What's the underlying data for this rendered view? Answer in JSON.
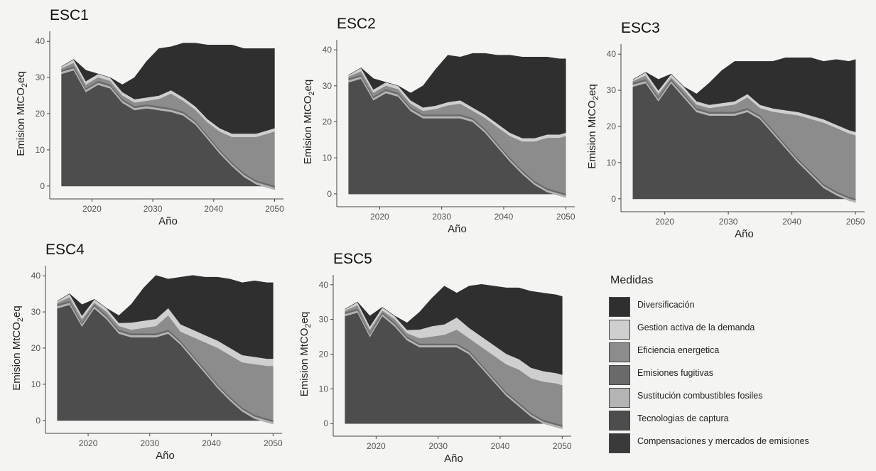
{
  "chart_data": [
    {
      "type": "area",
      "title": "ESC1",
      "xlabel": "Año",
      "ylabel": "Emision MtCO2eq",
      "xlim": [
        2014,
        2051
      ],
      "ylim": [
        -2,
        42
      ],
      "x_ticks": [
        2020,
        2030,
        2040,
        2050
      ],
      "y_ticks": [
        0,
        10,
        20,
        30,
        40
      ],
      "grid": false,
      "years": [
        2015,
        2017,
        2019,
        2021,
        2023,
        2025,
        2027,
        2029,
        2031,
        2033,
        2035,
        2037,
        2039,
        2041,
        2043,
        2045,
        2047,
        2049,
        2050
      ],
      "series": [
        {
          "name": "Compensaciones y mercados de emisiones",
          "values": [
            0,
            0,
            0,
            0,
            0,
            0,
            0,
            0,
            0,
            0,
            0,
            0,
            0,
            0,
            0,
            0,
            0,
            0,
            0
          ]
        },
        {
          "name": "Tecnologias de captura",
          "values": [
            31,
            32,
            26,
            28,
            27,
            23,
            21,
            21.5,
            21,
            20.5,
            19.5,
            17,
            13,
            9,
            5.5,
            2.5,
            0.5,
            -0.5,
            -1
          ]
        },
        {
          "name": "Sustitución combustibles fosiles",
          "values": [
            0.6,
            0.6,
            0.6,
            0.6,
            0.6,
            0.6,
            0.6,
            0.6,
            0.6,
            0.6,
            0.6,
            0.6,
            0.6,
            0.6,
            0.6,
            0.6,
            0.6,
            0.6,
            0.6
          ]
        },
        {
          "name": "Emisiones fugitivas",
          "values": [
            0.5,
            0.5,
            0.5,
            0.5,
            0.5,
            0.5,
            0.5,
            0.5,
            0.5,
            0.5,
            0.5,
            0.5,
            0.5,
            0.5,
            0.5,
            0.5,
            0.5,
            0.5,
            0.5
          ]
        },
        {
          "name": "Eficiencia energetica",
          "values": [
            0.5,
            1,
            1,
            1,
            1,
            1,
            1,
            1,
            2,
            4,
            3,
            3,
            3.5,
            5,
            7,
            10,
            12,
            14,
            15
          ]
        },
        {
          "name": "Gestion activa de la demanda",
          "values": [
            0.4,
            0.9,
            0.9,
            0.9,
            0.9,
            0.9,
            0.9,
            0.9,
            0.9,
            0.9,
            0.9,
            0.9,
            0.9,
            0.9,
            0.9,
            0.9,
            0.9,
            0.9,
            0.9
          ]
        },
        {
          "name": "Diversificación",
          "values": [
            0,
            0,
            3,
            0,
            0,
            2,
            6,
            10,
            13,
            12,
            15,
            17.5,
            20.5,
            23,
            24.5,
            23.5,
            23.5,
            22.5,
            22
          ]
        }
      ]
    },
    {
      "type": "area",
      "title": "ESC2",
      "xlabel": "Año",
      "ylabel": "Emision MtCO2eq",
      "xlim": [
        2014,
        2051
      ],
      "ylim": [
        -2,
        42
      ],
      "x_ticks": [
        2020,
        2030,
        2040,
        2050
      ],
      "y_ticks": [
        0,
        10,
        20,
        30,
        40
      ],
      "grid": false,
      "years": [
        2015,
        2017,
        2019,
        2021,
        2023,
        2025,
        2027,
        2029,
        2031,
        2033,
        2035,
        2037,
        2039,
        2041,
        2043,
        2045,
        2047,
        2049,
        2050
      ],
      "series": [
        {
          "name": "Compensaciones y mercados de emisiones",
          "values": [
            0,
            0,
            0,
            0,
            0,
            0,
            0,
            0,
            0,
            0,
            0,
            0,
            0,
            0,
            0,
            0,
            0,
            0,
            0
          ]
        },
        {
          "name": "Tecnologias de captura",
          "values": [
            31,
            32,
            26,
            28,
            27,
            23,
            21,
            21,
            21,
            21,
            20,
            17,
            13,
            9,
            5.5,
            2.5,
            0.5,
            -0.5,
            -1
          ]
        },
        {
          "name": "Sustitución combustibles fosiles",
          "values": [
            0.6,
            0.6,
            0.6,
            0.6,
            0.6,
            0.6,
            0.6,
            0.6,
            0.6,
            0.6,
            0.6,
            0.6,
            0.6,
            0.6,
            0.6,
            0.6,
            0.6,
            0.6,
            0.6
          ]
        },
        {
          "name": "Emisiones fugitivas",
          "values": [
            0.5,
            0.5,
            0.5,
            0.5,
            0.5,
            0.5,
            0.5,
            0.5,
            0.5,
            0.5,
            0.5,
            0.5,
            0.5,
            0.5,
            0.5,
            0.5,
            0.5,
            0.5,
            0.5
          ]
        },
        {
          "name": "Eficiencia energetica",
          "values": [
            0.5,
            1,
            1,
            1,
            1,
            1,
            1,
            1.5,
            2.5,
            3,
            2,
            3,
            4.5,
            6,
            8,
            11,
            14,
            15,
            16
          ]
        },
        {
          "name": "Gestion activa de la demanda",
          "values": [
            0.4,
            0.9,
            0.9,
            0.9,
            0.9,
            0.9,
            0.9,
            0.9,
            0.9,
            0.9,
            0.9,
            0.9,
            0.9,
            0.9,
            0.9,
            0.9,
            0.9,
            0.9,
            0.9
          ]
        },
        {
          "name": "Diversificación",
          "values": [
            0,
            0,
            3,
            0,
            0,
            2,
            6,
            10,
            13,
            12,
            15,
            17,
            19,
            21.5,
            22.5,
            22.5,
            21.5,
            21,
            20.5
          ]
        }
      ]
    },
    {
      "type": "area",
      "title": "ESC3",
      "xlabel": "Año",
      "ylabel": "Emision MtCO2eq",
      "xlim": [
        2014,
        2051
      ],
      "ylim": [
        -2,
        42
      ],
      "x_ticks": [
        2020,
        2030,
        2040,
        2050
      ],
      "y_ticks": [
        0,
        10,
        20,
        30,
        40
      ],
      "grid": false,
      "years": [
        2015,
        2017,
        2019,
        2021,
        2023,
        2025,
        2027,
        2029,
        2031,
        2033,
        2035,
        2037,
        2039,
        2041,
        2043,
        2045,
        2047,
        2049,
        2050
      ],
      "series": [
        {
          "name": "Compensaciones y mercados de emisiones",
          "values": [
            0,
            0,
            0,
            0,
            0,
            0,
            0,
            0,
            0,
            0,
            0,
            0,
            0,
            0,
            0,
            0,
            0,
            0,
            0
          ]
        },
        {
          "name": "Tecnologias de captura",
          "values": [
            31,
            32,
            27,
            32,
            28,
            24,
            23,
            23,
            23,
            24,
            22,
            18,
            14,
            10,
            6.5,
            3,
            1,
            -0.5,
            -1
          ]
        },
        {
          "name": "Sustitución combustibles fosiles",
          "values": [
            0.6,
            0.6,
            0.6,
            0.6,
            0.6,
            0.6,
            0.6,
            0.6,
            0.6,
            0.6,
            0.6,
            0.6,
            0.6,
            0.6,
            0.6,
            0.6,
            0.6,
            0.6,
            0.6
          ]
        },
        {
          "name": "Emisiones fugitivas",
          "values": [
            0.5,
            0.5,
            0.5,
            0.5,
            0.5,
            0.5,
            0.5,
            0.5,
            0.5,
            0.5,
            0.5,
            0.5,
            0.5,
            0.5,
            0.5,
            0.5,
            0.5,
            0.5,
            0.5
          ]
        },
        {
          "name": "Eficiencia energetica",
          "values": [
            0.5,
            1,
            1,
            0.5,
            1,
            1,
            1,
            1.5,
            2,
            3,
            2,
            5,
            8.5,
            12,
            14.5,
            17,
            17.5,
            17.5,
            17.5
          ]
        },
        {
          "name": "Gestion activa de la demanda",
          "values": [
            0.4,
            0.9,
            0.9,
            0.9,
            0.9,
            0.9,
            0.9,
            0.9,
            0.9,
            0.9,
            0.9,
            0.9,
            0.9,
            0.9,
            0.9,
            0.9,
            0.9,
            0.9,
            0.9
          ]
        },
        {
          "name": "Diversificación",
          "values": [
            0,
            0,
            3,
            0,
            0,
            2,
            6,
            9,
            11,
            9,
            12,
            13,
            14.5,
            15,
            16,
            16,
            18,
            19,
            20
          ]
        }
      ]
    },
    {
      "type": "area",
      "title": "ESC4",
      "xlabel": "Año",
      "ylabel": "Emision MtCO2eq",
      "xlim": [
        2014,
        2051
      ],
      "ylim": [
        -2,
        42
      ],
      "x_ticks": [
        2020,
        2030,
        2040,
        2050
      ],
      "y_ticks": [
        0,
        10,
        20,
        30,
        40
      ],
      "grid": false,
      "years": [
        2015,
        2017,
        2019,
        2021,
        2023,
        2025,
        2027,
        2029,
        2031,
        2033,
        2035,
        2037,
        2039,
        2041,
        2043,
        2045,
        2047,
        2049,
        2050
      ],
      "series": [
        {
          "name": "Compensaciones y mercados de emisiones",
          "values": [
            0,
            0,
            0,
            0,
            0,
            0,
            0,
            0,
            0,
            0,
            0,
            0,
            0,
            0,
            0,
            0,
            0,
            0,
            0
          ]
        },
        {
          "name": "Tecnologias de captura",
          "values": [
            31,
            32,
            26,
            31,
            28,
            24,
            23,
            23,
            23,
            24,
            21,
            17,
            13,
            9,
            5.5,
            2.5,
            0.5,
            -0.5,
            -1
          ]
        },
        {
          "name": "Sustitución combustibles fosiles",
          "values": [
            0.6,
            0.6,
            0.6,
            0.6,
            0.6,
            0.6,
            0.6,
            0.6,
            0.6,
            0.6,
            0.6,
            0.6,
            0.6,
            0.6,
            0.6,
            0.6,
            0.6,
            0.6,
            0.6
          ]
        },
        {
          "name": "Emisiones fugitivas",
          "values": [
            0.5,
            0.5,
            0.5,
            0.5,
            0.5,
            0.5,
            0.5,
            0.5,
            0.5,
            0.5,
            0.5,
            0.5,
            0.5,
            0.5,
            0.5,
            0.5,
            0.5,
            0.5,
            0.5
          ]
        },
        {
          "name": "Eficiencia energetica",
          "values": [
            0.5,
            1,
            1,
            0.5,
            1,
            1,
            1,
            1.5,
            2,
            4,
            2.5,
            5,
            7.5,
            10,
            11.5,
            12.5,
            14,
            14.5,
            15
          ]
        },
        {
          "name": "Gestion activa de la demanda",
          "values": [
            0.4,
            0.9,
            0.9,
            0.9,
            0.9,
            0.9,
            2,
            2,
            2,
            2,
            2,
            2,
            2,
            2,
            2,
            2,
            2,
            2,
            2
          ]
        },
        {
          "name": "Diversificación",
          "values": [
            0,
            0,
            3,
            0,
            0,
            2,
            5,
            9,
            12,
            8,
            13,
            15,
            16,
            17.5,
            19,
            20,
            21,
            21,
            21
          ]
        }
      ]
    },
    {
      "type": "area",
      "title": "ESC5",
      "xlabel": "Año",
      "ylabel": "Emision MtCO2eq",
      "xlim": [
        2014,
        2051
      ],
      "ylim": [
        -2,
        42
      ],
      "x_ticks": [
        2020,
        2030,
        2040,
        2050
      ],
      "y_ticks": [
        0,
        10,
        20,
        30,
        40
      ],
      "grid": false,
      "years": [
        2015,
        2017,
        2019,
        2021,
        2023,
        2025,
        2027,
        2029,
        2031,
        2033,
        2035,
        2037,
        2039,
        2041,
        2043,
        2045,
        2047,
        2049,
        2050
      ],
      "series": [
        {
          "name": "Compensaciones y mercados de emisiones",
          "values": [
            0,
            0,
            0,
            0,
            0,
            0,
            0,
            0,
            0,
            0,
            0,
            0,
            0,
            0,
            0,
            0,
            0,
            0,
            0
          ]
        },
        {
          "name": "Tecnologias de captura",
          "values": [
            31,
            32,
            25,
            31,
            28,
            24,
            22,
            22,
            22,
            22,
            20,
            16,
            12,
            8,
            5,
            2,
            0,
            -1,
            -1.5
          ]
        },
        {
          "name": "Sustitución combustibles fosiles",
          "values": [
            0.6,
            0.6,
            0.6,
            0.6,
            0.6,
            0.6,
            0.6,
            0.6,
            0.6,
            0.6,
            0.6,
            0.6,
            0.6,
            0.6,
            0.6,
            0.6,
            0.6,
            0.6,
            0.6
          ]
        },
        {
          "name": "Emisiones fugitivas",
          "values": [
            0.5,
            0.5,
            0.5,
            0.5,
            0.5,
            0.5,
            0.5,
            0.5,
            0.5,
            0.5,
            0.5,
            0.5,
            0.5,
            0.5,
            0.5,
            0.5,
            0.5,
            0.5,
            0.5
          ]
        },
        {
          "name": "Eficiencia energetica",
          "values": [
            0.5,
            1,
            1,
            0.5,
            1,
            1,
            1.5,
            2,
            2.5,
            4,
            3.5,
            5,
            6.5,
            8,
            9.5,
            10,
            11,
            11.5,
            11.5
          ]
        },
        {
          "name": "Gestion activa de la demanda",
          "values": [
            0.4,
            0.9,
            0.9,
            0.9,
            0.9,
            0.9,
            2.5,
            3,
            3,
            3.5,
            3,
            3,
            3,
            3,
            3,
            3,
            3,
            3,
            3
          ]
        },
        {
          "name": "Diversificación",
          "values": [
            0,
            0,
            3,
            0,
            0,
            2,
            5,
            8,
            11,
            7,
            12,
            15,
            17,
            19,
            20.5,
            22,
            22.5,
            22.5,
            22.5
          ]
        }
      ]
    }
  ],
  "legend": {
    "title": "Medidas",
    "items": [
      {
        "label": "Diversificación",
        "color": "#2f2f2f"
      },
      {
        "label": "Gestion activa de la demanda",
        "color": "#cfcfcf"
      },
      {
        "label": "Eficiencia energetica",
        "color": "#8c8c8c"
      },
      {
        "label": "Emisiones fugitivas",
        "color": "#6a6a6a"
      },
      {
        "label": "Sustitución combustibles fosiles",
        "color": "#b4b4b4"
      },
      {
        "label": "Tecnologias de captura",
        "color": "#4d4d4d"
      },
      {
        "label": "Compensaciones y mercados de emisiones",
        "color": "#3a3a3a"
      }
    ]
  }
}
